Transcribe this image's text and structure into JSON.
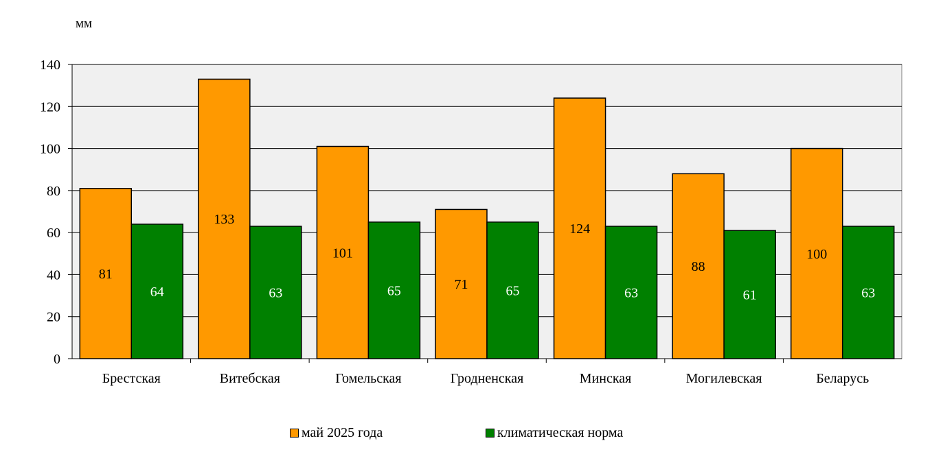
{
  "chart_data": {
    "type": "bar",
    "ylabel": "мм",
    "ylim": [
      0,
      140
    ],
    "yticks": [
      0,
      20,
      40,
      60,
      80,
      100,
      120,
      140
    ],
    "grid": true,
    "legend_position": "bottom",
    "categories": [
      "Брестская",
      "Витебская",
      "Гомельская",
      "Гродненская",
      "Минская",
      "Могилевская",
      "Беларусь"
    ],
    "series": [
      {
        "name": "май 2025 года",
        "color": "#FF9900",
        "label_color": "#000000",
        "values": [
          81,
          133,
          101,
          71,
          124,
          88,
          100
        ]
      },
      {
        "name": "климатическая норма",
        "color": "#008000",
        "label_color": "#ffffff",
        "values": [
          64,
          63,
          65,
          65,
          63,
          61,
          63
        ]
      }
    ],
    "plot_background": "#F0F0F0"
  }
}
